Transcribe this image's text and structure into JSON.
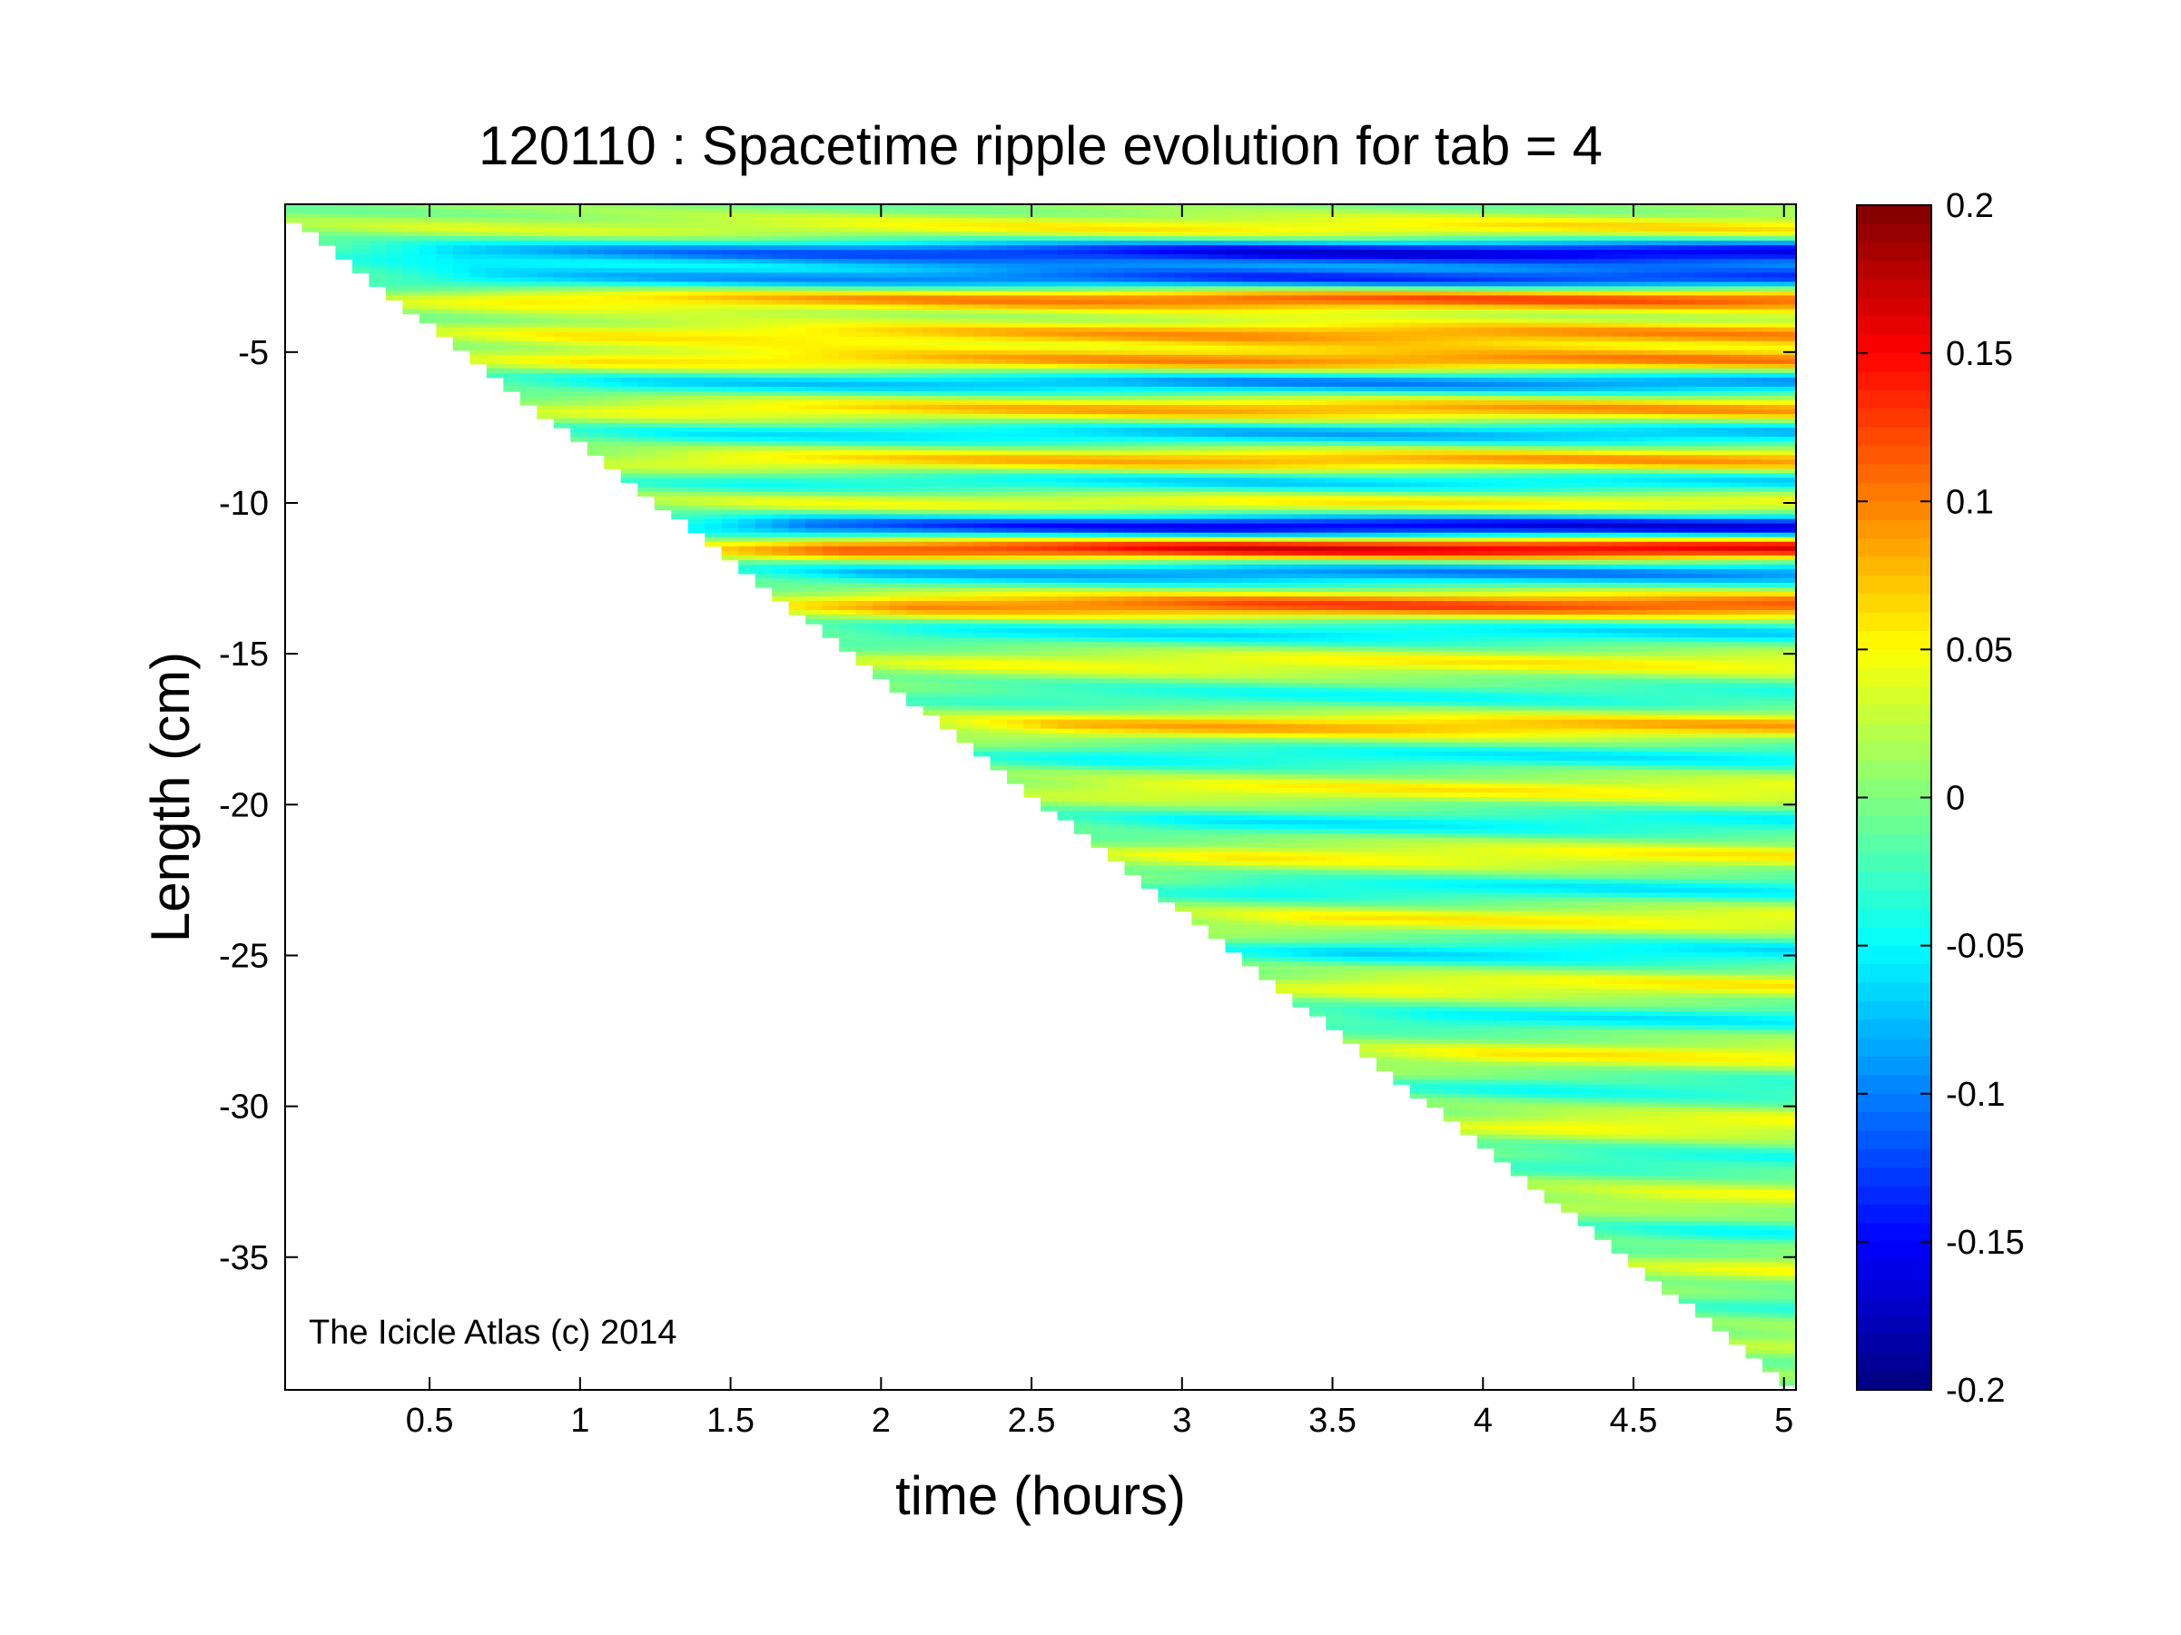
{
  "chart_data": {
    "type": "heatmap",
    "title": "120110 : Spacetime ripple evolution for tab = 4",
    "xlabel": "time (hours)",
    "ylabel": "Length (cm)",
    "xlim": [
      0.02,
      5.04
    ],
    "ylim": [
      -39.4,
      -0.1
    ],
    "xticks": [
      0.5,
      1,
      1.5,
      2,
      2.5,
      3,
      3.5,
      4,
      4.5,
      5
    ],
    "xtick_labels": [
      "0.5",
      "1",
      "1.5",
      "2",
      "2.5",
      "3",
      "3.5",
      "4",
      "4.5",
      "5"
    ],
    "yticks": [
      -5,
      -10,
      -15,
      -20,
      -25,
      -30,
      -35
    ],
    "ytick_labels": [
      "-5",
      "-10",
      "-15",
      "-20",
      "-25",
      "-30",
      "-35"
    ],
    "colormap": "jet",
    "clim": [
      -0.2,
      0.2
    ],
    "colorbar_ticks": [
      0.2,
      0.15,
      0.1,
      0.05,
      0,
      -0.05,
      -0.1,
      -0.15,
      -0.2
    ],
    "colorbar_labels": [
      "0.2",
      "0.15",
      "0.1",
      "0.05",
      "0",
      "-0.05",
      "-0.1",
      "-0.15",
      "-0.2"
    ],
    "data_region": {
      "description_of_shape": "triangular: icicle length grows linearly with time, no data below the growth front",
      "front_start": {
        "time": 0.02,
        "length": -0.2
      },
      "front_end": {
        "time": 5.04,
        "length": -39.2
      }
    },
    "ripple_bands": [
      {
        "length": -0.9,
        "amplitude": 0.06
      },
      {
        "length": -1.7,
        "amplitude": -0.16
      },
      {
        "length": -2.6,
        "amplitude": -0.14
      },
      {
        "length": -3.2,
        "amplitude": 0.13
      },
      {
        "length": -4.4,
        "amplitude": 0.09
      },
      {
        "length": -5.3,
        "amplitude": 0.1
      },
      {
        "length": -6.0,
        "amplitude": -0.1
      },
      {
        "length": -6.9,
        "amplitude": 0.09
      },
      {
        "length": -7.7,
        "amplitude": -0.08
      },
      {
        "length": -8.6,
        "amplitude": 0.09
      },
      {
        "length": -9.3,
        "amplitude": -0.07
      },
      {
        "length": -10.0,
        "amplitude": 0.06
      },
      {
        "length": -10.8,
        "amplitude": -0.17
      },
      {
        "length": -11.5,
        "amplitude": 0.17
      },
      {
        "length": -12.3,
        "amplitude": -0.1
      },
      {
        "length": -13.4,
        "amplitude": 0.12
      },
      {
        "length": -14.3,
        "amplitude": -0.06
      },
      {
        "length": -15.3,
        "amplitude": 0.05
      },
      {
        "length": -16.4,
        "amplitude": -0.04
      },
      {
        "length": -17.4,
        "amplitude": 0.08
      },
      {
        "length": -18.4,
        "amplitude": -0.05
      },
      {
        "length": -19.5,
        "amplitude": 0.05
      },
      {
        "length": -20.6,
        "amplitude": -0.05
      },
      {
        "length": -21.7,
        "amplitude": 0.05
      },
      {
        "length": -22.8,
        "amplitude": -0.05
      },
      {
        "length": -23.8,
        "amplitude": 0.05
      },
      {
        "length": -24.9,
        "amplitude": -0.06
      },
      {
        "length": -26.0,
        "amplitude": 0.05
      },
      {
        "length": -27.1,
        "amplitude": -0.05
      },
      {
        "length": -28.3,
        "amplitude": 0.05
      },
      {
        "length": -29.4,
        "amplitude": -0.04
      },
      {
        "length": -30.6,
        "amplitude": 0.05
      },
      {
        "length": -31.8,
        "amplitude": -0.04
      },
      {
        "length": -33.0,
        "amplitude": 0.04
      },
      {
        "length": -34.2,
        "amplitude": -0.04
      },
      {
        "length": -35.4,
        "amplitude": 0.04
      },
      {
        "length": -36.6,
        "amplitude": -0.03
      },
      {
        "length": -37.8,
        "amplitude": 0.03
      }
    ],
    "annotations": [
      "The Icicle Atlas (c) 2014"
    ]
  }
}
